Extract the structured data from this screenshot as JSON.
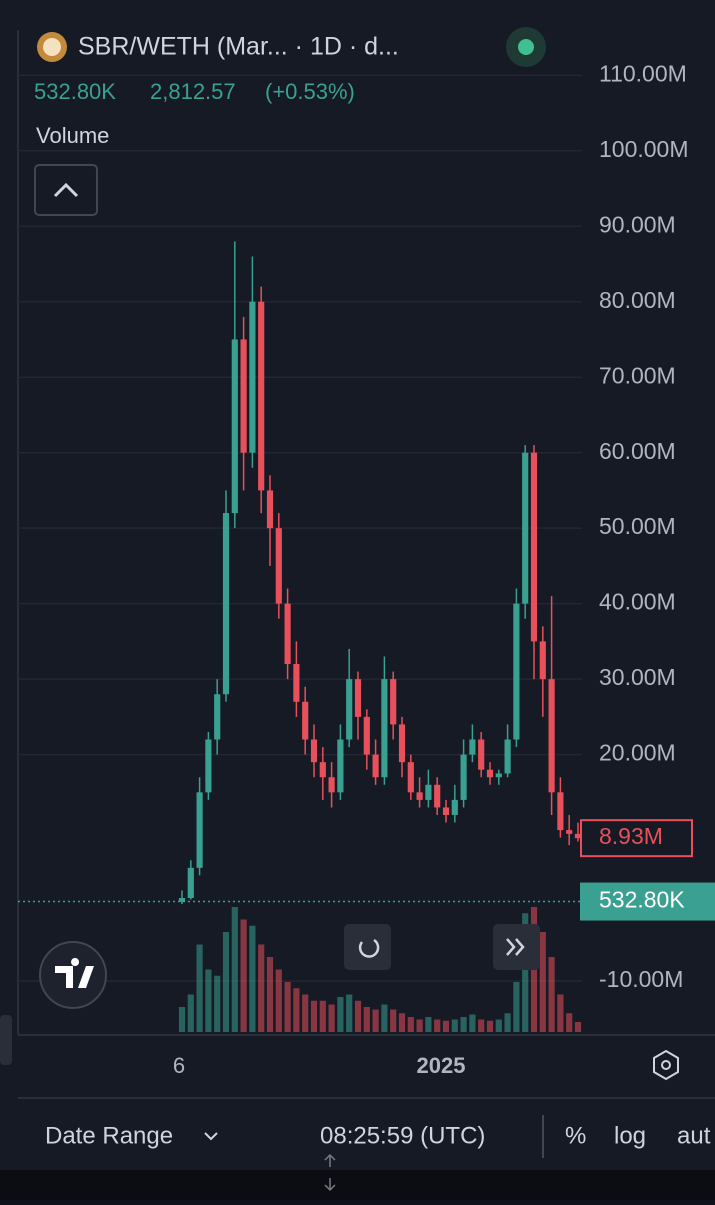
{
  "ui": {
    "header": {
      "symbol": "SBR/WETH (Mar...  · 1D · d...",
      "last": "532.80K",
      "price": "2,812.57",
      "change": "(+0.53%)",
      "indicator": "Volume"
    },
    "x_labels": [
      "6",
      "2025"
    ],
    "toolbar": {
      "date_range": "Date Range",
      "time": "08:25:59 (UTC)",
      "percent": "%",
      "log": "log",
      "auto": "aut"
    }
  },
  "chart_data": {
    "type": "candlestick",
    "open": [
      0.5,
      1,
      5,
      15,
      22,
      28,
      52,
      75,
      60,
      80,
      55,
      50,
      40,
      32,
      27,
      22,
      19,
      17,
      15,
      22,
      30,
      25,
      20,
      17,
      30,
      24,
      19,
      15,
      14,
      16,
      13,
      12,
      14,
      20,
      22,
      18,
      17,
      17.5,
      22,
      40,
      60,
      35,
      30,
      15,
      10,
      9.5
    ],
    "high": [
      2,
      6,
      17,
      23,
      30,
      55,
      88,
      78,
      86,
      82,
      57,
      52,
      42,
      35,
      29,
      24,
      21,
      19,
      24,
      34,
      31,
      26,
      22,
      33,
      31,
      25,
      20,
      17,
      18,
      17,
      14,
      16,
      22,
      24,
      23,
      19,
      18,
      24,
      42,
      61,
      61,
      37,
      41,
      17,
      12,
      11
    ],
    "low": [
      0.2,
      0.8,
      4,
      14,
      20,
      27,
      50,
      55,
      58,
      52,
      45,
      38,
      30,
      25,
      20,
      17,
      14,
      13,
      14,
      21,
      22,
      18,
      16,
      16,
      22,
      17,
      14,
      13,
      13,
      12,
      11,
      11,
      13,
      19,
      17,
      16,
      16,
      17,
      21,
      38,
      30,
      25,
      12,
      9,
      8,
      8.5
    ],
    "close": [
      1,
      5,
      15,
      22,
      28,
      52,
      75,
      60,
      80,
      55,
      50,
      40,
      32,
      27,
      22,
      19,
      17,
      15,
      22,
      30,
      25,
      20,
      17,
      30,
      24,
      19,
      15,
      14,
      16,
      13,
      12,
      14,
      20,
      22,
      18,
      17,
      17.5,
      22,
      40,
      60,
      35,
      30,
      15,
      10,
      9.5,
      8.93
    ],
    "volume": [
      20,
      30,
      70,
      50,
      45,
      80,
      100,
      90,
      85,
      70,
      60,
      50,
      40,
      35,
      30,
      25,
      25,
      22,
      28,
      30,
      25,
      20,
      18,
      22,
      18,
      15,
      12,
      10,
      12,
      10,
      9,
      10,
      12,
      14,
      10,
      9,
      10,
      15,
      40,
      95,
      100,
      80,
      60,
      30,
      15,
      8
    ],
    "ylim": [
      -16.75,
      116
    ],
    "yticks": [
      {
        "value": 110,
        "label": "110.00M"
      },
      {
        "value": 100,
        "label": "100.00M"
      },
      {
        "value": 90,
        "label": "90.00M"
      },
      {
        "value": 80,
        "label": "80.00M"
      },
      {
        "value": 70,
        "label": "70.00M"
      },
      {
        "value": 60,
        "label": "60.00M"
      },
      {
        "value": 50,
        "label": "50.00M"
      },
      {
        "value": 40,
        "label": "40.00M"
      },
      {
        "value": 30,
        "label": "30.00M"
      },
      {
        "value": 20,
        "label": "20.00M"
      },
      {
        "value": -10,
        "label": "-10.00M"
      }
    ],
    "grid": true,
    "last_value": 8.93,
    "last_label": "8.93M",
    "volume_value": 0.5328,
    "volume_label": "532.80K",
    "up_color": "#3aa092",
    "down_color": "#e8505b"
  }
}
